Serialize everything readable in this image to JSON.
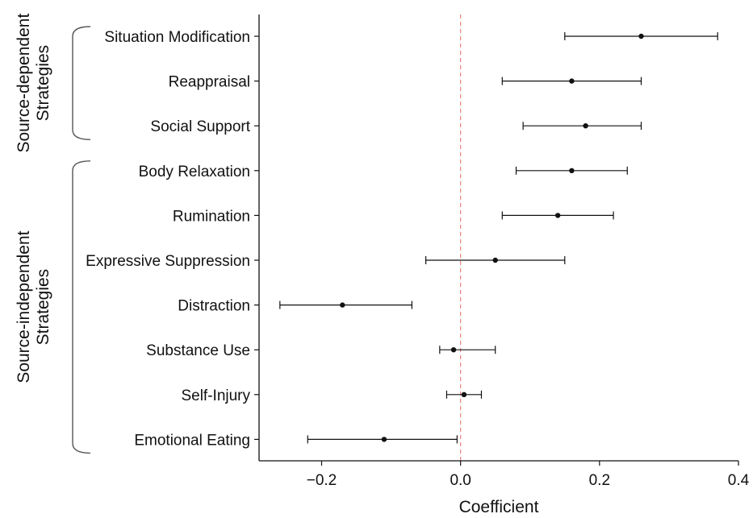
{
  "chart_data": {
    "type": "scatter",
    "title": "",
    "xlabel": "Coefficient",
    "ylabel": "",
    "xlim": [
      -0.29,
      0.4
    ],
    "xticks": [
      -0.2,
      0.0,
      0.2,
      0.4
    ],
    "xtick_labels": [
      "−0.2",
      "0.0",
      "0.2",
      "0.4"
    ],
    "reference_line": {
      "x": 0,
      "color": "#e8837b",
      "style": "dashed"
    },
    "grid": false,
    "categories": [
      "Situation Modification",
      "Reappraisal",
      "Social Support",
      "Body Relaxation",
      "Rumination",
      "Expressive Suppression",
      "Distraction",
      "Substance Use",
      "Self-Injury",
      "Emotional Eating"
    ],
    "estimates": [
      0.26,
      0.16,
      0.18,
      0.16,
      0.14,
      0.05,
      -0.17,
      -0.01,
      0.005,
      -0.11
    ],
    "ci_lower": [
      0.15,
      0.06,
      0.09,
      0.08,
      0.06,
      -0.05,
      -0.26,
      -0.03,
      -0.02,
      -0.22
    ],
    "ci_upper": [
      0.37,
      0.26,
      0.26,
      0.24,
      0.22,
      0.15,
      -0.07,
      0.05,
      0.03,
      -0.005
    ],
    "groups": [
      {
        "lines": [
          "Source-dependent",
          "Strategies"
        ],
        "first": 0,
        "last": 2
      },
      {
        "lines": [
          "Source-independent",
          "Strategies"
        ],
        "first": 3,
        "last": 9
      }
    ]
  }
}
